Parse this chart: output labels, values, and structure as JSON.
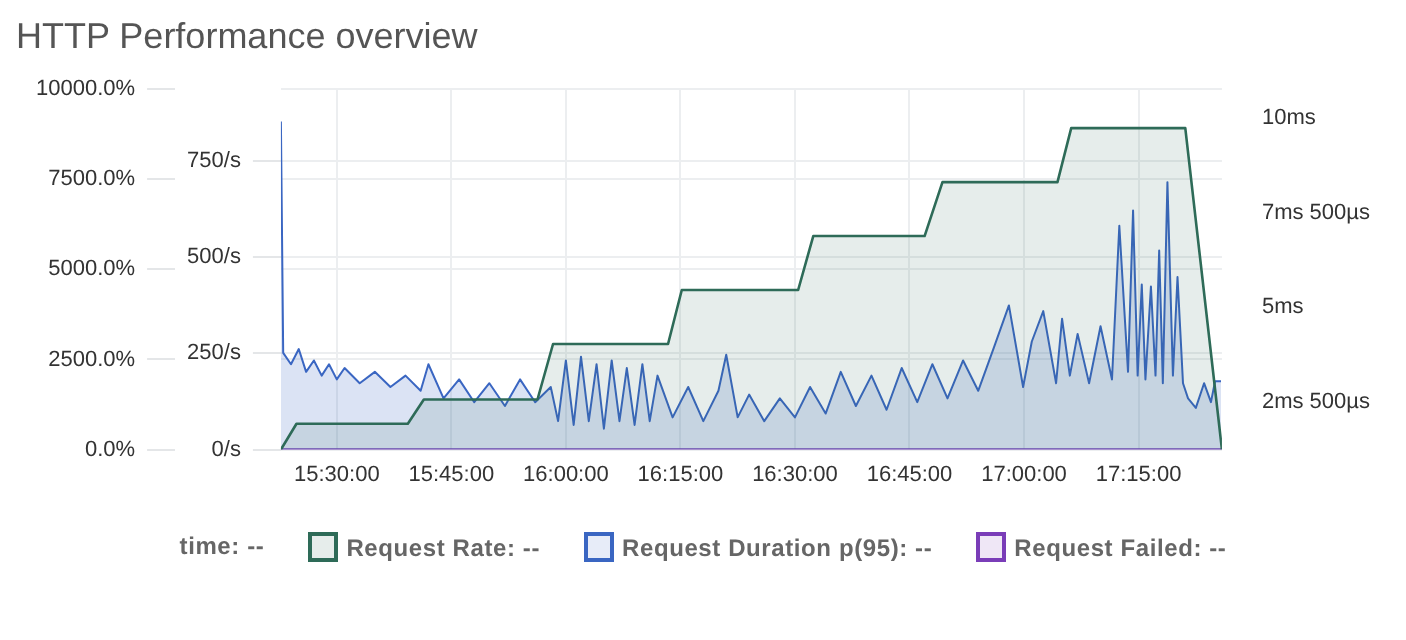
{
  "chart_data": {
    "type": "area",
    "title": "HTTP Performance overview",
    "annotations": [
      "time: --"
    ],
    "xlim": [
      15.378,
      17.432
    ],
    "xticks": [
      {
        "value": 15.5,
        "label": "15:30:00"
      },
      {
        "value": 15.75,
        "label": "15:45:00"
      },
      {
        "value": 16,
        "label": "16:00:00"
      },
      {
        "value": 16.25,
        "label": "16:15:00"
      },
      {
        "value": 16.5,
        "label": "16:30:00"
      },
      {
        "value": 16.75,
        "label": "16:45:00"
      },
      {
        "value": 17,
        "label": "17:00:00"
      },
      {
        "value": 17.25,
        "label": "17:15:00"
      }
    ],
    "ylim": [
      0,
      935
    ],
    "yticks": [
      {
        "value": 0,
        "label": "0/s"
      },
      {
        "value": 250,
        "label": "250/s"
      },
      {
        "value": 500,
        "label": "500/s"
      },
      {
        "value": 750,
        "label": "750/s"
      }
    ],
    "y2lim": [
      1.25,
      10.75
    ],
    "y2ticks": [
      {
        "value": 2.5,
        "label": "2ms 500µs"
      },
      {
        "value": 5,
        "label": "5ms"
      },
      {
        "value": 7.5,
        "label": "7ms 500µs"
      },
      {
        "value": 10,
        "label": "10ms"
      }
    ],
    "y3lim": [
      0,
      10000
    ],
    "y3ticks": [
      {
        "value": 0,
        "label": "0.0%"
      },
      {
        "value": 2500,
        "label": "2500.0%"
      },
      {
        "value": 5000,
        "label": "5000.0%"
      },
      {
        "value": 7500,
        "label": "7500.0%"
      },
      {
        "value": 10000,
        "label": "10000.0%"
      }
    ],
    "grid": true,
    "legend": "bottom",
    "series": [
      {
        "name": "Request Rate: --",
        "color": "#2e6b58",
        "axis": "y",
        "x": [
          15.378,
          15.412,
          15.655,
          15.69,
          15.938,
          15.972,
          16.223,
          16.253,
          16.507,
          16.54,
          16.783,
          16.822,
          17.073,
          17.103,
          17.352,
          17.432
        ],
        "values": [
          0,
          67,
          67,
          130,
          130,
          274,
          274,
          414,
          414,
          554,
          554,
          694,
          694,
          834,
          834,
          0
        ]
      },
      {
        "name": "Request Duration p(95): --",
        "color": "#3a66c2",
        "axis": "y2",
        "x": [
          15.378,
          15.383,
          15.4,
          15.417,
          15.433,
          15.45,
          15.467,
          15.483,
          15.5,
          15.517,
          15.55,
          15.583,
          15.617,
          15.65,
          15.683,
          15.7,
          15.733,
          15.767,
          15.8,
          15.833,
          15.867,
          15.9,
          15.933,
          15.967,
          15.983,
          16.0,
          16.017,
          16.033,
          16.05,
          16.067,
          16.083,
          16.1,
          16.117,
          16.133,
          16.15,
          16.167,
          16.183,
          16.2,
          16.233,
          16.267,
          16.3,
          16.333,
          16.35,
          16.375,
          16.4,
          16.433,
          16.467,
          16.5,
          16.533,
          16.567,
          16.6,
          16.633,
          16.667,
          16.7,
          16.733,
          16.767,
          16.8,
          16.833,
          16.867,
          16.9,
          16.933,
          16.967,
          16.998,
          17.017,
          17.042,
          17.07,
          17.083,
          17.1,
          17.117,
          17.142,
          17.167,
          17.192,
          17.208,
          17.227,
          17.238,
          17.248,
          17.257,
          17.265,
          17.277,
          17.287,
          17.295,
          17.303,
          17.313,
          17.325,
          17.335,
          17.347,
          17.358,
          17.375,
          17.393,
          17.408,
          17.417,
          17.43
        ],
        "values": [
          9.9,
          3.8,
          3.5,
          3.9,
          3.3,
          3.6,
          3.2,
          3.5,
          3.1,
          3.4,
          3.0,
          3.3,
          2.9,
          3.2,
          2.8,
          3.5,
          2.6,
          3.1,
          2.5,
          3.0,
          2.4,
          3.1,
          2.5,
          2.9,
          2.0,
          3.6,
          1.9,
          3.7,
          2.0,
          3.5,
          1.8,
          3.6,
          2.0,
          3.4,
          1.9,
          3.5,
          2.0,
          3.2,
          2.1,
          2.9,
          2.0,
          2.8,
          3.75,
          2.1,
          2.7,
          2.0,
          2.6,
          2.1,
          2.9,
          2.2,
          3.3,
          2.4,
          3.2,
          2.3,
          3.4,
          2.5,
          3.5,
          2.6,
          3.6,
          2.8,
          3.9,
          5.05,
          2.9,
          4.1,
          4.9,
          3.0,
          4.7,
          3.2,
          4.3,
          3.0,
          4.5,
          3.1,
          7.15,
          3.3,
          7.55,
          3.2,
          5.6,
          3.1,
          5.55,
          3.2,
          6.5,
          3.0,
          8.3,
          3.2,
          5.8,
          3.0,
          2.6,
          2.35,
          3.0,
          2.5,
          3.05,
          3.05
        ]
      },
      {
        "name": "Request Failed: --",
        "color": "#7a3db8",
        "type": "line",
        "axis": "y3",
        "x": [
          15.378,
          17.432
        ],
        "values": [
          0,
          0
        ]
      }
    ]
  }
}
